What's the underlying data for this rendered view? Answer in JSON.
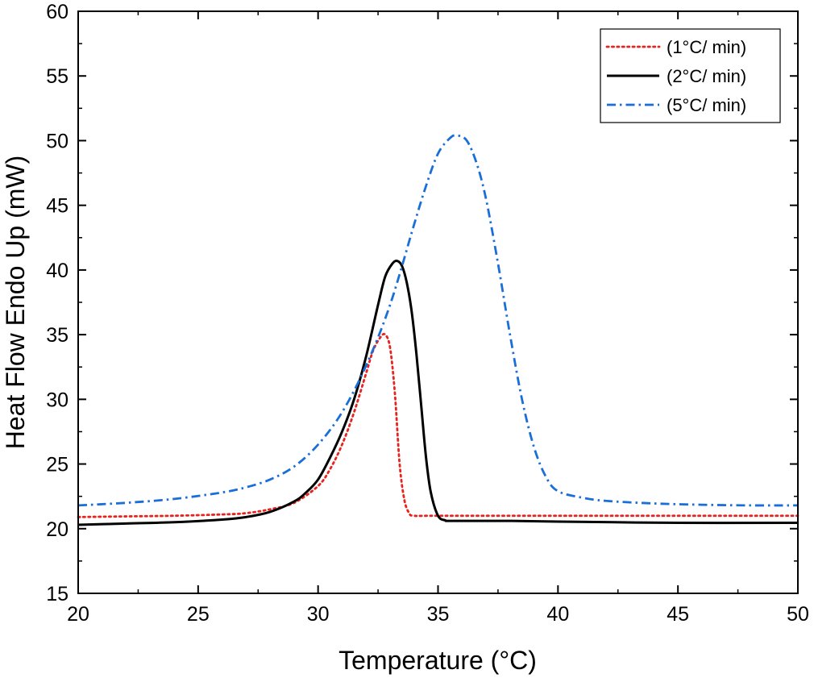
{
  "chart_data": {
    "type": "line",
    "title": "",
    "xlabel": "Temperature (°C)",
    "ylabel": "Heat Flow Endo Up (mW)",
    "xlim": [
      20,
      50
    ],
    "ylim": [
      15,
      60
    ],
    "xticks": [
      20,
      25,
      30,
      35,
      40,
      45,
      50
    ],
    "yticks": [
      15,
      20,
      25,
      30,
      35,
      40,
      45,
      50,
      55,
      60
    ],
    "grid": false,
    "legend_position": "top-right",
    "series": [
      {
        "name": "(1°C/ min)",
        "color": "#e8231f",
        "style": "dotted",
        "x": [
          20,
          22,
          24,
          26,
          27,
          28,
          29,
          30,
          30.5,
          31,
          31.5,
          32,
          32.3,
          32.6,
          32.8,
          33.0,
          33.2,
          33.4,
          33.6,
          33.8,
          34.0,
          35,
          40,
          45,
          50
        ],
        "y": [
          20.9,
          20.95,
          21.0,
          21.1,
          21.2,
          21.5,
          22.0,
          23.3,
          24.6,
          26.5,
          29.0,
          32.0,
          33.8,
          34.8,
          35.0,
          34.0,
          30.5,
          25.0,
          22.2,
          21.2,
          21.0,
          21.0,
          21.0,
          21.0,
          21.0
        ]
      },
      {
        "name": "(2°C/ min)",
        "color": "#000000",
        "style": "solid",
        "x": [
          20,
          22,
          24,
          26,
          27,
          28,
          29,
          29.5,
          30,
          30.5,
          31,
          31.5,
          32,
          32.5,
          32.8,
          33.1,
          33.3,
          33.5,
          33.7,
          33.9,
          34.1,
          34.3,
          34.5,
          34.7,
          35.0,
          35.3,
          35.6,
          38,
          40,
          45,
          50
        ],
        "y": [
          20.3,
          20.4,
          20.5,
          20.7,
          20.9,
          21.3,
          22.1,
          22.8,
          23.8,
          25.5,
          27.5,
          30.0,
          33.3,
          37.3,
          39.5,
          40.5,
          40.7,
          40.3,
          39.0,
          36.8,
          33.5,
          29.5,
          25.5,
          22.8,
          21.0,
          20.65,
          20.6,
          20.6,
          20.55,
          20.45,
          20.45
        ]
      },
      {
        "name": "(5°C/ min)",
        "color": "#1a6ed8",
        "style": "dashdot",
        "x": [
          20,
          22,
          24,
          26,
          27,
          28,
          29,
          30,
          31,
          32,
          33,
          34,
          34.5,
          35,
          35.5,
          35.8,
          36.2,
          36.6,
          37,
          37.5,
          38,
          38.5,
          39,
          39.5,
          40,
          41,
          42,
          44,
          46,
          48,
          50
        ],
        "y": [
          21.8,
          22.0,
          22.3,
          22.8,
          23.2,
          23.8,
          24.8,
          26.5,
          29.0,
          32.6,
          37.3,
          43.5,
          46.5,
          49.0,
          50.2,
          50.4,
          50.0,
          48.3,
          45.5,
          40.5,
          35.0,
          30.0,
          26.3,
          24.0,
          22.9,
          22.4,
          22.15,
          21.95,
          21.85,
          21.8,
          21.8
        ]
      }
    ]
  }
}
